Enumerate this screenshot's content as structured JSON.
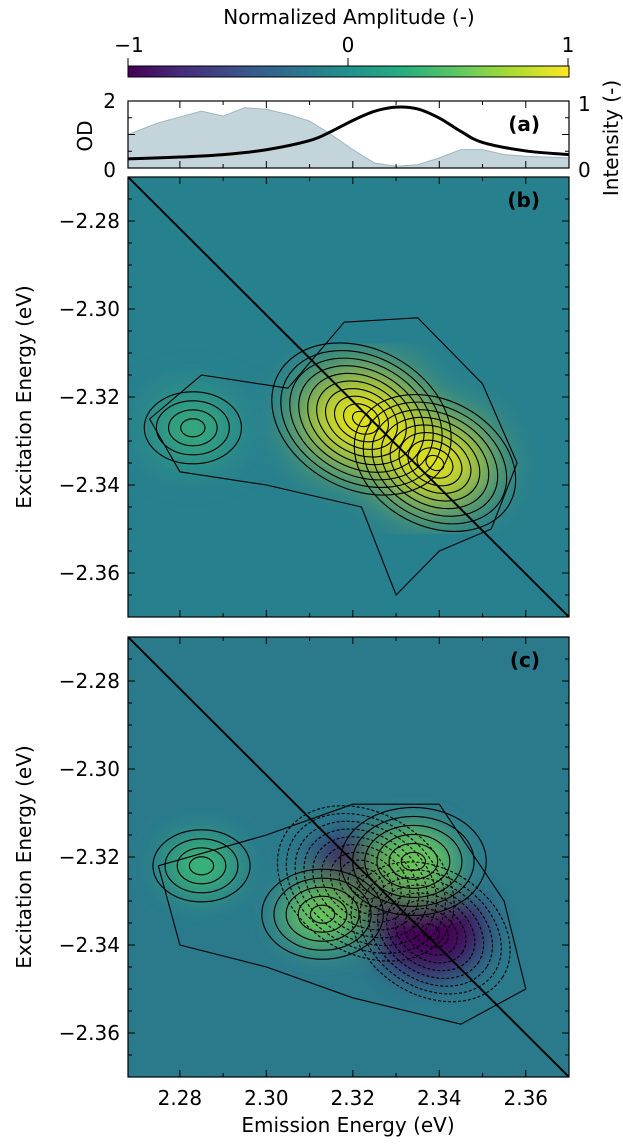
{
  "colorbar": {
    "label": "Normalized Amplitude (-)",
    "ticks": [
      "−1",
      "0",
      "1"
    ],
    "colormap": "viridis",
    "range": [
      -1,
      1
    ]
  },
  "panels": {
    "a": {
      "label": "(a)"
    },
    "b": {
      "label": "(b)"
    },
    "c": {
      "label": "(c)"
    }
  },
  "axes": {
    "xlabel": "Emission Energy (eV)",
    "ylabel": "Excitation Energy (eV)",
    "od_label": "OD",
    "intensity_label": "Intensity (-)",
    "x_ticks": [
      "2.28",
      "2.30",
      "2.32",
      "2.34",
      "2.36"
    ],
    "y_ticks": [
      "−2.28",
      "−2.30",
      "−2.32",
      "−2.34",
      "−2.36"
    ],
    "od_ticks": [
      "2",
      "0"
    ],
    "intensity_ticks": [
      "1",
      "0"
    ]
  },
  "colors": {
    "background_field": "#26818e",
    "od_fill": "#b9cdd5",
    "line": "#000000"
  },
  "chart_data": [
    {
      "type": "area",
      "panel": "a",
      "series": [
        {
          "kind": "absorbance-fill",
          "x": [
            2.268,
            2.275,
            2.285,
            2.29,
            2.295,
            2.3,
            2.305,
            2.31,
            2.315,
            2.32,
            2.325,
            2.33,
            2.335,
            2.34,
            2.345,
            2.35,
            2.355,
            2.36,
            2.37
          ],
          "values": [
            1.0,
            1.35,
            1.7,
            1.55,
            1.8,
            1.75,
            1.6,
            1.4,
            1.0,
            0.55,
            0.15,
            0.05,
            0.1,
            0.3,
            0.55,
            0.55,
            0.4,
            0.35,
            0.3
          ]
        },
        {
          "kind": "emission-line",
          "x": [
            2.268,
            2.28,
            2.29,
            2.3,
            2.31,
            2.315,
            2.32,
            2.325,
            2.33,
            2.335,
            2.34,
            2.345,
            2.35,
            2.36,
            2.37
          ],
          "values": [
            0.15,
            0.18,
            0.22,
            0.3,
            0.45,
            0.6,
            0.78,
            0.93,
            1.0,
            0.97,
            0.82,
            0.6,
            0.42,
            0.28,
            0.22
          ]
        }
      ],
      "xlim": [
        2.268,
        2.37
      ],
      "ylim": [
        0,
        2
      ],
      "y2lim": [
        0,
        1.1
      ]
    },
    {
      "type": "heatmap",
      "panel": "b",
      "xlim": [
        2.268,
        2.37
      ],
      "ylim": [
        -2.37,
        -2.27
      ],
      "diagonal": true,
      "peaks": [
        {
          "x": 2.322,
          "y": -2.325,
          "amp": 1.0
        },
        {
          "x": 2.339,
          "y": -2.335,
          "amp": 0.85
        },
        {
          "x": 2.283,
          "y": -2.327,
          "amp": 0.35
        }
      ]
    },
    {
      "type": "heatmap",
      "panel": "c",
      "xlim": [
        2.268,
        2.37
      ],
      "ylim": [
        -2.37,
        -2.27
      ],
      "diagonal": true,
      "peaks": [
        {
          "x": 2.323,
          "y": -2.326,
          "amp": -1.0
        },
        {
          "x": 2.338,
          "y": -2.337,
          "amp": -0.85
        },
        {
          "x": 2.334,
          "y": -2.321,
          "amp": 0.55
        },
        {
          "x": 2.313,
          "y": -2.333,
          "amp": 0.45
        },
        {
          "x": 2.285,
          "y": -2.322,
          "amp": 0.35
        }
      ]
    }
  ]
}
